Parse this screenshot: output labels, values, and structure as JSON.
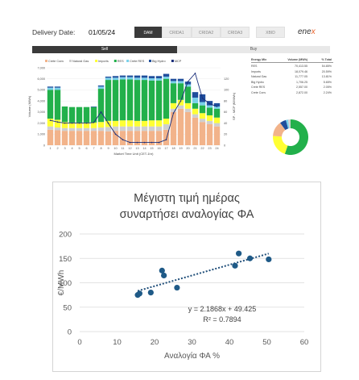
{
  "header": {
    "delivery_label": "Delivery Date:",
    "delivery_value": "01/05/24",
    "tabs": [
      "DAM",
      "CRIDA1",
      "CRIDA2",
      "CRIDA3",
      "XBID"
    ],
    "active_tab": "DAM",
    "logo_a": "ene",
    "logo_b": "x"
  },
  "sellbuy": {
    "sell": "Sell",
    "buy": "Buy"
  },
  "mix_table": {
    "headers": [
      "Energy Mix",
      "Volume (MWh)",
      "% Total"
    ],
    "rows": [
      [
        "RES",
        "70,413.55",
        "54.85%"
      ],
      [
        "Imports",
        "18,079.46",
        "20.59%"
      ],
      [
        "Natural Gas",
        "11,777.05",
        "13.81%"
      ],
      [
        "Big Hydro",
        "1,706.25",
        "5.65%"
      ],
      [
        "Crete RES",
        "2,557.00",
        "2.05%"
      ],
      [
        "Crete Conv",
        "2,872.00",
        "2.24%"
      ]
    ]
  },
  "chart_data": [
    {
      "type": "bar",
      "title": "",
      "legend": [
        "Crete Conv",
        "Natural Gas",
        "Imports",
        "RES",
        "Crete RES",
        "Big Hydro",
        "MCP"
      ],
      "colors": {
        "Crete Conv": "#f2b38a",
        "Natural Gas": "#cfcfcf",
        "Imports": "#ffff33",
        "RES": "#22b04b",
        "Crete RES": "#7ad1ea",
        "Big Hydro": "#1f4e9c",
        "MCP": "#1a2e7a"
      },
      "xlabel": "Market Time Unit (CET-1hr)",
      "ylabel": "Volume (MWh)",
      "ylabel_right": "SP - MCP (€/MWh)",
      "categories": [
        "1",
        "2",
        "3",
        "4",
        "5",
        "6",
        "7",
        "8",
        "9",
        "10",
        "11",
        "12",
        "13",
        "14",
        "15",
        "16",
        "17",
        "18",
        "19",
        "20",
        "21",
        "22",
        "23",
        "24"
      ],
      "ylim": [
        0,
        7000
      ],
      "yticks": [
        "0",
        "1,000",
        "2,000",
        "3,000",
        "4,000",
        "5,000",
        "6,000",
        "7,000"
      ],
      "y2lim": [
        0,
        140
      ],
      "y2ticks": [
        "0",
        "20",
        "40",
        "60",
        "80",
        "100",
        "120"
      ],
      "series": [
        {
          "name": "Crete Conv",
          "values": [
            1400,
            1350,
            1300,
            1300,
            1300,
            1300,
            1300,
            1300,
            1250,
            1300,
            1300,
            1300,
            1300,
            1300,
            1300,
            1300,
            1400,
            3000,
            3300,
            3000,
            2500,
            2100,
            1900,
            1700
          ]
        },
        {
          "name": "Natural Gas",
          "values": [
            300,
            250,
            250,
            250,
            250,
            250,
            250,
            300,
            400,
            400,
            400,
            400,
            400,
            400,
            400,
            400,
            500,
            300,
            300,
            300,
            300,
            300,
            300,
            300
          ]
        },
        {
          "name": "Imports",
          "values": [
            700,
            700,
            550,
            500,
            500,
            500,
            500,
            500,
            550,
            500,
            550,
            550,
            500,
            500,
            550,
            550,
            500,
            500,
            500,
            500,
            500,
            500,
            500,
            500
          ]
        },
        {
          "name": "RES",
          "values": [
            2600,
            2700,
            1400,
            1400,
            1400,
            1400,
            1400,
            3000,
            3700,
            3700,
            3700,
            3700,
            3700,
            3700,
            3600,
            3600,
            3600,
            1800,
            1500,
            1500,
            500,
            700,
            700,
            800
          ]
        },
        {
          "name": "Crete RES",
          "values": [
            200,
            200,
            0,
            0,
            0,
            0,
            0,
            200,
            200,
            200,
            200,
            200,
            200,
            200,
            200,
            200,
            200,
            200,
            200,
            200,
            500,
            300,
            200,
            200
          ]
        },
        {
          "name": "Big Hydro",
          "values": [
            100,
            100,
            0,
            0,
            0,
            0,
            50,
            100,
            100,
            150,
            150,
            150,
            200,
            200,
            200,
            200,
            250,
            200,
            200,
            250,
            500,
            700,
            400,
            300
          ]
        },
        {
          "name": "MCP",
          "values": [
            45,
            42,
            40,
            40,
            40,
            40,
            41,
            60,
            40,
            20,
            10,
            5,
            5,
            5,
            5,
            5,
            10,
            58,
            80,
            115,
            130,
            85,
            75,
            70
          ]
        }
      ]
    },
    {
      "type": "pie",
      "title": "",
      "categories": [
        "RES",
        "Imports",
        "Natural Gas",
        "Big Hydro",
        "Crete RES",
        "Crete Conv"
      ],
      "values": [
        54.85,
        20.59,
        13.81,
        5.65,
        2.05,
        2.24
      ],
      "colors": [
        "#22b04b",
        "#ffff33",
        "#f2b38a",
        "#1f4e9c",
        "#7ad1ea",
        "#cfcfcf"
      ]
    },
    {
      "type": "scatter",
      "title": "Μέγιστη τιμή ημέρας συναρτήσει αναλογίας ΦΑ",
      "title_lines": [
        "Μέγιστη τιμή ημέρας",
        "συναρτήσει αναλογίας ΦΑ"
      ],
      "xlabel": "Αναλογία ΦΑ %",
      "ylabel": "€/MWh",
      "xlim": [
        0,
        60
      ],
      "ylim": [
        0,
        200
      ],
      "xticks": [
        "0",
        "10",
        "20",
        "30",
        "40",
        "50",
        "60"
      ],
      "yticks": [
        "0",
        "50",
        "100",
        "150",
        "200"
      ],
      "points": [
        [
          15.5,
          75
        ],
        [
          16,
          78
        ],
        [
          19,
          80
        ],
        [
          22,
          125
        ],
        [
          22.5,
          115
        ],
        [
          26,
          90
        ],
        [
          41.5,
          135
        ],
        [
          42.5,
          160
        ],
        [
          45.5,
          150
        ],
        [
          50.5,
          148
        ]
      ],
      "trendline": {
        "slope": 2.1868,
        "intercept": 49.425,
        "x_range": [
          15.5,
          50.5
        ]
      },
      "equation": "y = 2.1868x + 49.425",
      "r2": "R² = 0.7894"
    }
  ]
}
